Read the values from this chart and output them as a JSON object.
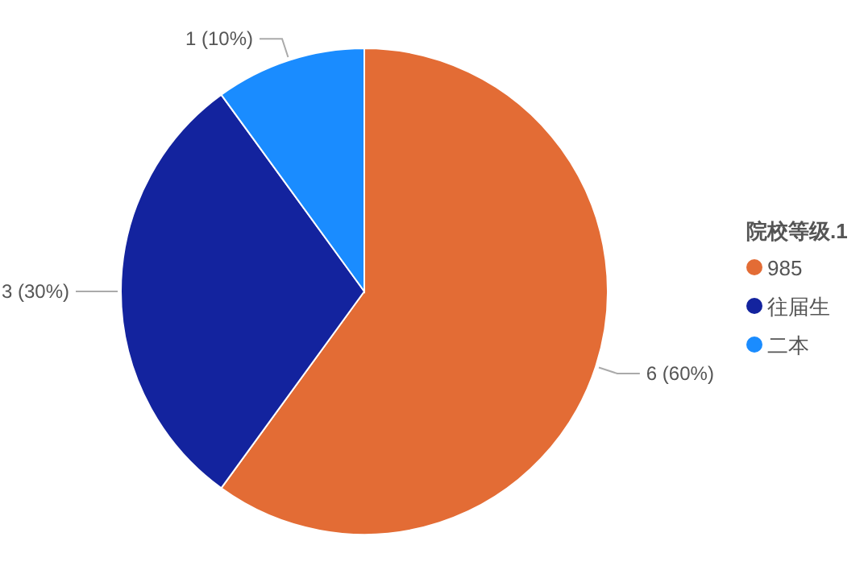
{
  "chart_data": {
    "type": "pie",
    "legend_title": "院校等级.1",
    "categories": [
      "985",
      "往届生",
      "二本"
    ],
    "values": [
      6,
      3,
      1
    ],
    "colors": [
      "#e36c35",
      "#13239e",
      "#1a8cff"
    ],
    "value_labels": [
      "6 (60%)",
      "3 (30%)",
      "1 (10%)"
    ],
    "legend": "right"
  }
}
